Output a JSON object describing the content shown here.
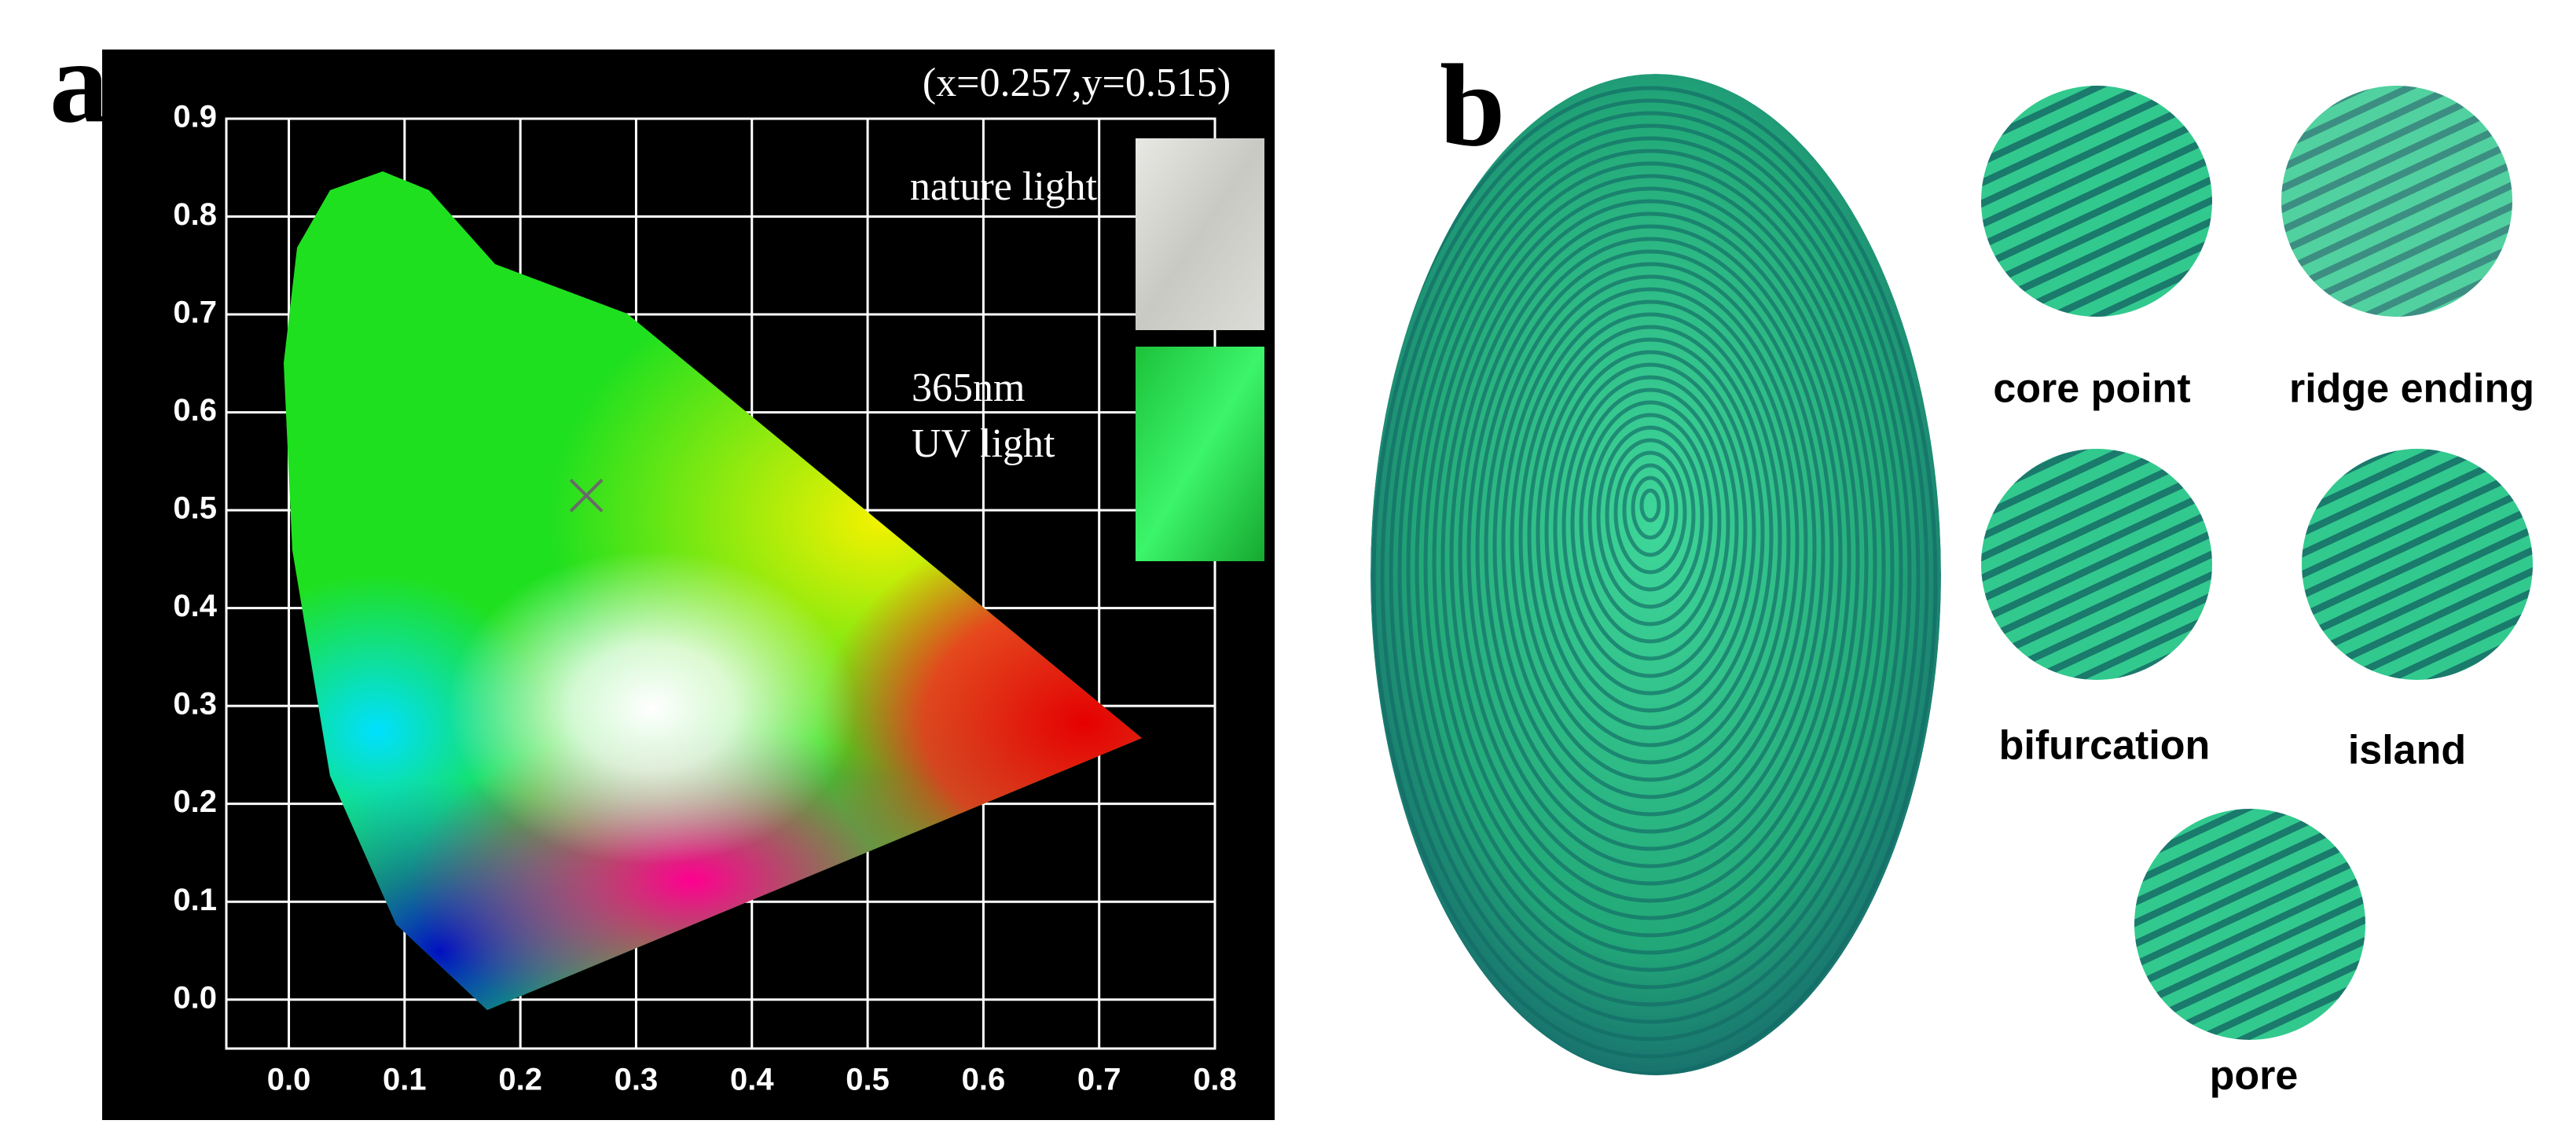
{
  "panel_labels": [
    "a",
    "b"
  ],
  "chart_data": {
    "type": "scatter",
    "annotation": "(x=0.257,y=0.515)",
    "x": [
      0.257
    ],
    "values": [
      0.515
    ],
    "color": "#6a6a6a",
    "xlim": [
      -0.054,
      0.8
    ],
    "ylim": [
      -0.05,
      0.9
    ],
    "xticks": [
      {
        "value": 0,
        "label": "0.0"
      },
      0.1,
      0.2,
      0.3,
      0.4,
      0.5,
      0.6,
      0.7,
      0.8
    ],
    "yticks": [
      {
        "value": 0,
        "label": "0.0"
      },
      0.1,
      0.2,
      0.3,
      0.4,
      0.5,
      0.6,
      0.7,
      0.8,
      0.9
    ],
    "grid": true
  },
  "panel_a_insets": [
    {
      "lines": [
        "nature light"
      ]
    },
    {
      "lines": [
        "365nm",
        "UV light"
      ]
    }
  ],
  "panel_b": {
    "details": [
      {
        "label": "core point"
      },
      {
        "label": "ridge ending"
      },
      {
        "label": "bifurcation"
      },
      {
        "label": "island"
      },
      {
        "label": "pore"
      }
    ]
  }
}
